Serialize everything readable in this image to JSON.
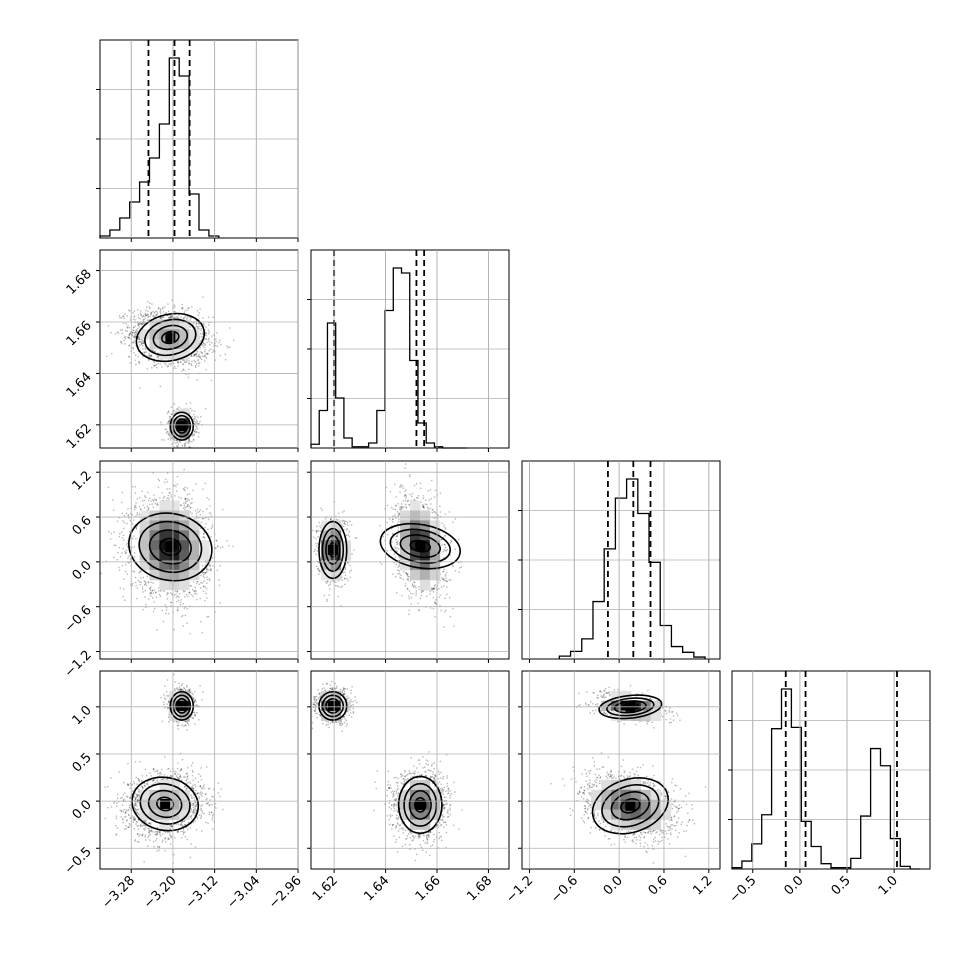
{
  "chart_data": {
    "type": "corner",
    "grid": true,
    "colors": {
      "frame": "#000000",
      "grid": "#b0b0b0",
      "density_dark": "#000000",
      "points": "#000000"
    },
    "parameters": [
      {
        "index": 0,
        "range": [
          -3.34,
          -2.96
        ],
        "ticks": [
          {
            "v": -3.28,
            "label": "−3.28"
          },
          {
            "v": -3.2,
            "label": "−3.20"
          },
          {
            "v": -3.12,
            "label": "−3.12"
          },
          {
            "v": -3.04,
            "label": "−3.04"
          },
          {
            "v": -2.96,
            "label": "−2.96"
          }
        ]
      },
      {
        "index": 1,
        "range": [
          1.611,
          1.688
        ],
        "ticks": [
          {
            "v": 1.62,
            "label": "1.62"
          },
          {
            "v": 1.64,
            "label": "1.64"
          },
          {
            "v": 1.66,
            "label": "1.66"
          },
          {
            "v": 1.68,
            "label": "1.68"
          }
        ]
      },
      {
        "index": 2,
        "range": [
          -1.3,
          1.35
        ],
        "ticks": [
          {
            "v": -1.2,
            "label": "−1.2"
          },
          {
            "v": -0.6,
            "label": "−0.6"
          },
          {
            "v": 0.0,
            "label": "0.0"
          },
          {
            "v": 0.6,
            "label": "0.6"
          },
          {
            "v": 1.2,
            "label": "1.2"
          }
        ]
      },
      {
        "index": 3,
        "range": [
          -0.72,
          1.38
        ],
        "ticks": [
          {
            "v": -0.5,
            "label": "−0.5"
          },
          {
            "v": 0.0,
            "label": "0.0"
          },
          {
            "v": 0.5,
            "label": "0.5"
          },
          {
            "v": 1.0,
            "label": "1.0"
          }
        ]
      }
    ],
    "marginals": [
      {
        "param": 0,
        "quantiles": [
          -3.247,
          -3.197,
          -3.168
        ],
        "bins": [
          -3.34,
          -3.321,
          -3.302,
          -3.283,
          -3.264,
          -3.245,
          -3.226,
          -3.207,
          -3.188,
          -3.169,
          -3.15,
          -3.131,
          -3.112
        ],
        "counts": [
          1,
          4,
          10,
          18,
          28,
          40,
          57,
          90,
          81,
          22,
          4,
          1
        ]
      },
      {
        "param": 1,
        "quantiles": [
          1.62,
          1.652,
          1.655
        ],
        "bins": [
          1.611,
          1.6142,
          1.6174,
          1.6206,
          1.6238,
          1.627,
          1.6302,
          1.6334,
          1.6366,
          1.6398,
          1.643,
          1.6462,
          1.6494,
          1.6526,
          1.6558,
          1.659,
          1.6622,
          1.6654,
          1.6686,
          1.6718
        ],
        "counts": [
          3,
          30,
          100,
          40,
          8,
          1,
          1,
          4,
          30,
          110,
          144,
          140,
          70,
          20,
          4,
          1,
          0,
          0,
          0
        ]
      },
      {
        "param": 2,
        "quantiles": [
          -0.15,
          0.19,
          0.42
        ],
        "bins": [
          -0.8,
          -0.65,
          -0.5,
          -0.35,
          -0.2,
          -0.05,
          0.1,
          0.25,
          0.4,
          0.55,
          0.7,
          0.85,
          1.0,
          1.15
        ],
        "counts": [
          3,
          8,
          21,
          60,
          115,
          168,
          188,
          152,
          101,
          35,
          13,
          7,
          2
        ]
      },
      {
        "param": 3,
        "quantiles": [
          -0.15,
          0.06,
          1.03
        ],
        "bins": [
          -0.72,
          -0.615,
          -0.51,
          -0.405,
          -0.3,
          -0.195,
          -0.09,
          0.015,
          0.12,
          0.225,
          0.33,
          0.435,
          0.54,
          0.645,
          0.75,
          0.855,
          0.96,
          1.065,
          1.17,
          1.275
        ],
        "counts": [
          1,
          6,
          19,
          41,
          106,
          136,
          107,
          36,
          17,
          4,
          1,
          1,
          8,
          40,
          91,
          78,
          23,
          2,
          0
        ]
      }
    ],
    "joints": [
      {
        "x": 0,
        "y": 1,
        "modes": [
          {
            "mx": -3.205,
            "my": 1.654,
            "sx": 0.033,
            "sy": 0.0045,
            "rho": -0.2,
            "w": 0.7
          },
          {
            "mx": -3.183,
            "my": 1.6195,
            "sx": 0.011,
            "sy": 0.0027,
            "rho": 0.0,
            "w": 0.3
          }
        ]
      },
      {
        "x": 0,
        "y": 2,
        "modes": [
          {
            "mx": -3.205,
            "my": 0.2,
            "sx": 0.032,
            "sy": 0.28,
            "rho": -0.1,
            "w": 1.0
          }
        ]
      },
      {
        "x": 1,
        "y": 2,
        "modes": [
          {
            "mx": 1.6195,
            "my": 0.16,
            "sx": 0.0027,
            "sy": 0.19,
            "rho": 0.0,
            "w": 0.3
          },
          {
            "mx": 1.6535,
            "my": 0.21,
            "sx": 0.0042,
            "sy": 0.27,
            "rho": -0.25,
            "w": 0.7
          }
        ]
      },
      {
        "x": 0,
        "y": 3,
        "modes": [
          {
            "mx": -3.183,
            "my": 1.01,
            "sx": 0.011,
            "sy": 0.075,
            "rho": 0.0,
            "w": 0.3
          },
          {
            "mx": -3.215,
            "my": -0.03,
            "sx": 0.032,
            "sy": 0.14,
            "rho": 0.1,
            "w": 0.7
          }
        ]
      },
      {
        "x": 1,
        "y": 3,
        "modes": [
          {
            "mx": 1.6195,
            "my": 1.01,
            "sx": 0.0027,
            "sy": 0.075,
            "rho": 0.0,
            "w": 0.3
          },
          {
            "mx": 1.6535,
            "my": -0.04,
            "sx": 0.0042,
            "sy": 0.15,
            "rho": 0.0,
            "w": 0.7
          }
        ]
      },
      {
        "x": 2,
        "y": 3,
        "modes": [
          {
            "mx": 0.15,
            "my": 1.0,
            "sx": 0.21,
            "sy": 0.06,
            "rho": -0.25,
            "w": 0.3
          },
          {
            "mx": 0.15,
            "my": -0.05,
            "sx": 0.26,
            "sy": 0.14,
            "rho": -0.3,
            "w": 0.7
          }
        ]
      }
    ]
  }
}
